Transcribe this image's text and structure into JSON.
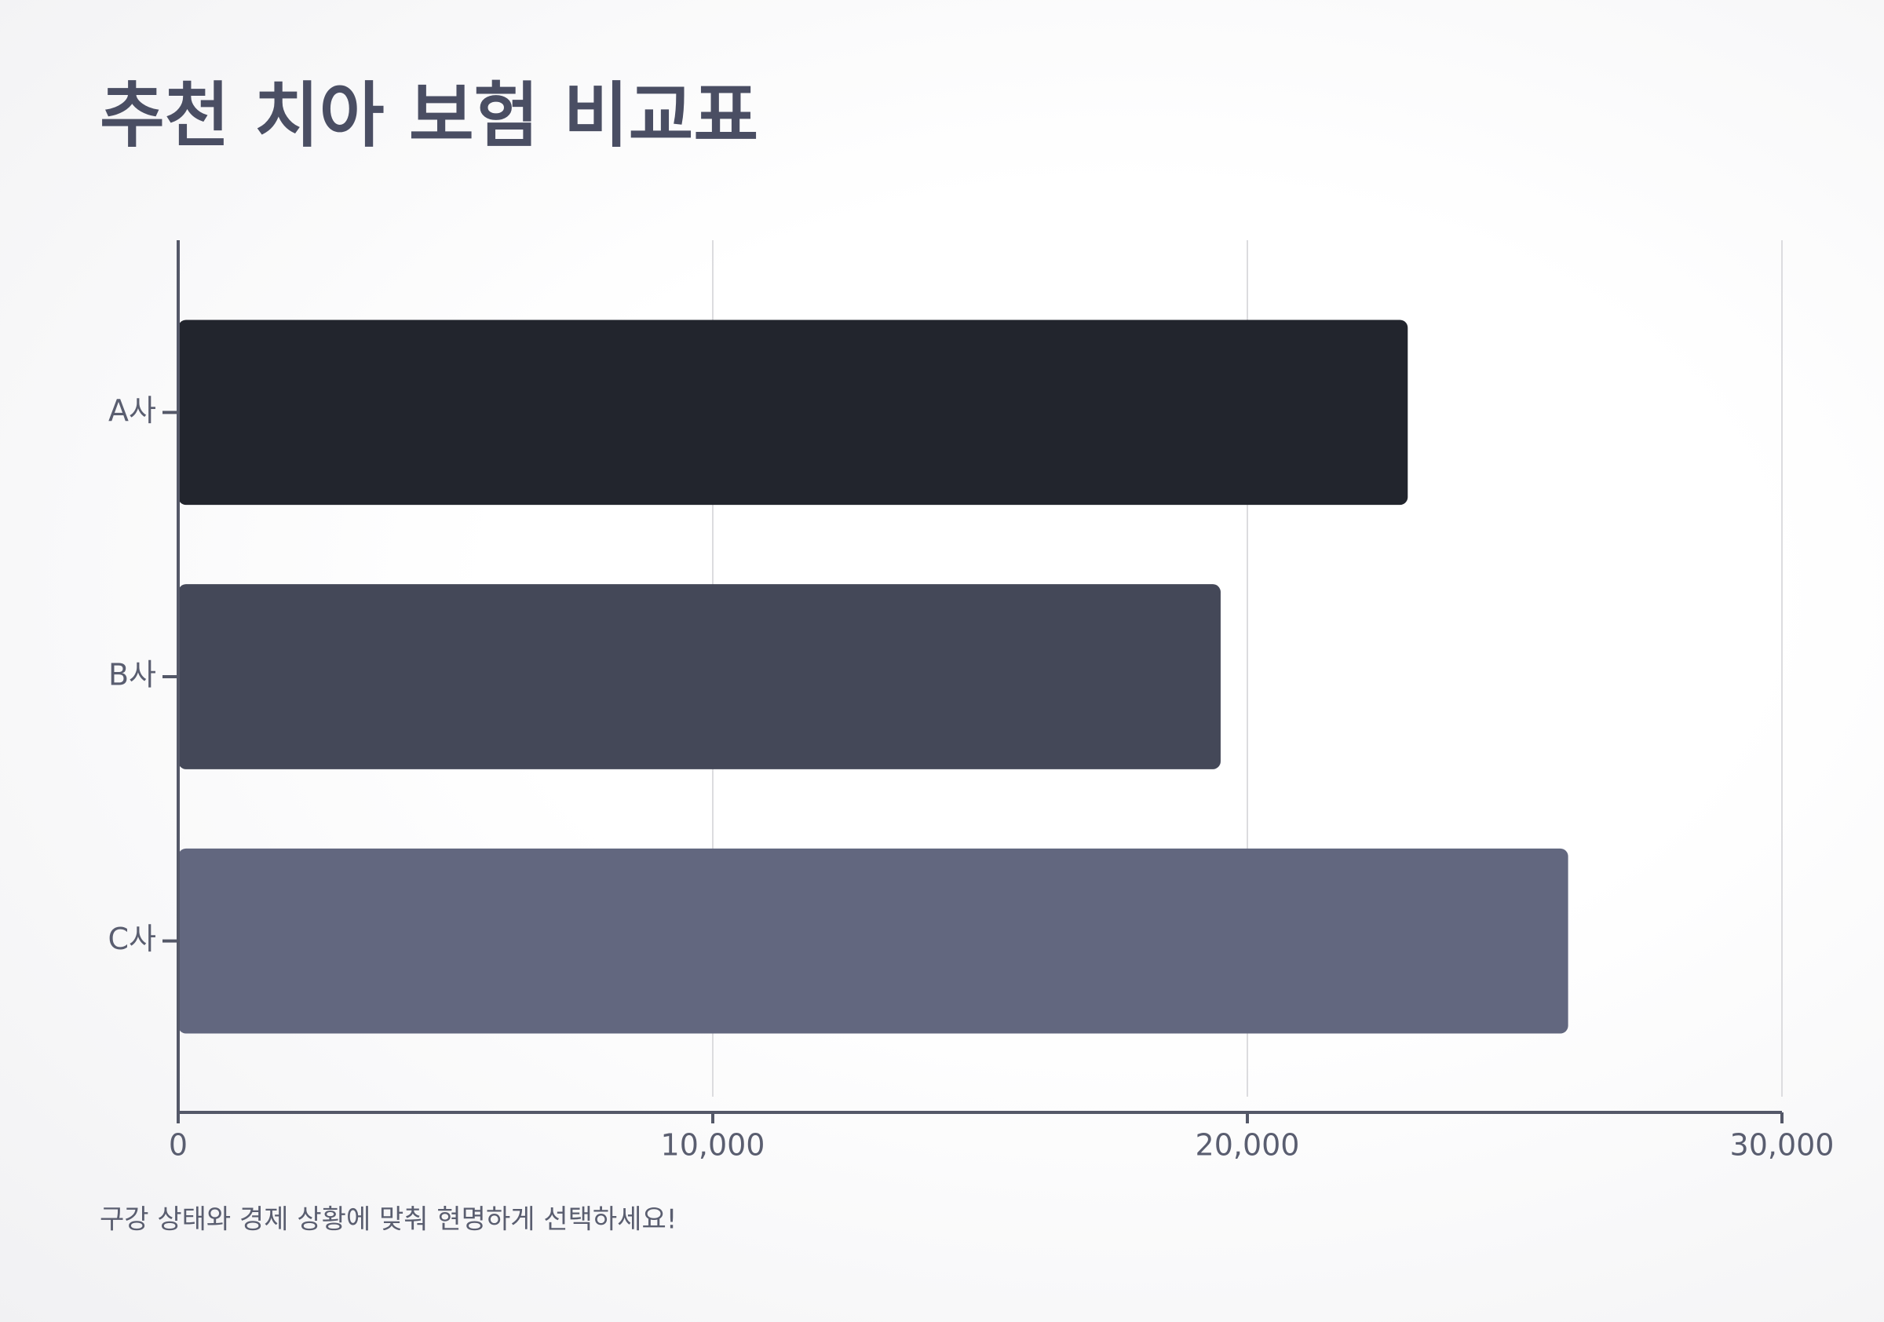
{
  "chart_data": {
    "type": "bar",
    "orientation": "horizontal",
    "title": "추천 치아 보험 비교표",
    "categories": [
      "A사",
      "B사",
      "C사"
    ],
    "values": [
      23000,
      19500,
      26000
    ],
    "colors": [
      "#22252d",
      "#444858",
      "#62677f"
    ],
    "xlim": [
      0,
      30000
    ],
    "xticks": [
      0,
      {
        "value": 10000,
        "label": "10,000"
      },
      {
        "value": 20000,
        "label": "20,000"
      },
      {
        "value": 30000,
        "label": "30,000"
      }
    ],
    "grid": true,
    "note": "구강 상태와 경제 상황에 맞춰 현명하게 선택하세요!"
  }
}
